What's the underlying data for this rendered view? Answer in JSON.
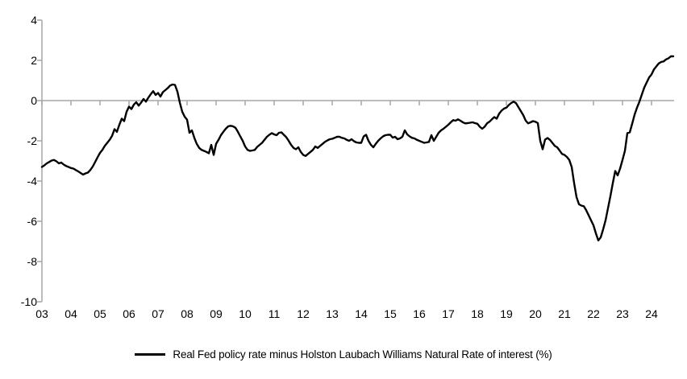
{
  "chart_data": {
    "type": "line",
    "title": "",
    "legend": {
      "label": "Real Fed policy rate minus Holston Laubach Williams Natural Rate of interest (%)",
      "position": "bottom-center",
      "swatch": "solid-black-line"
    },
    "axes": {
      "ylim": [
        -10,
        4
      ],
      "yticks": [
        4,
        2,
        0,
        -2,
        -4,
        -6,
        -8,
        -10
      ],
      "xticks": [
        "03",
        "04",
        "05",
        "06",
        "07",
        "08",
        "09",
        "10",
        "11",
        "12",
        "13",
        "14",
        "15",
        "16",
        "17",
        "18",
        "19",
        "20",
        "21",
        "22",
        "23",
        "24"
      ],
      "x_range_years": [
        2003.0,
        2024.75
      ],
      "grid": false,
      "zero_line": true
    },
    "colors": {
      "series_line": "#000000",
      "axis_line": "#a6a6a6",
      "zero_line": "#a6a6a6",
      "tick": "#a6a6a6",
      "label_text": "#000000"
    },
    "series": [
      {
        "name": "Real Fed policy rate minus Holston Laubach Williams Natural Rate of interest (%)",
        "x_start": "2003-01",
        "x_interval": "monthly",
        "values": [
          -3.3,
          -3.22,
          -3.12,
          -3.05,
          -2.98,
          -2.95,
          -3.02,
          -3.12,
          -3.08,
          -3.18,
          -3.25,
          -3.3,
          -3.35,
          -3.38,
          -3.45,
          -3.52,
          -3.6,
          -3.68,
          -3.62,
          -3.58,
          -3.45,
          -3.28,
          -3.05,
          -2.82,
          -2.6,
          -2.45,
          -2.25,
          -2.1,
          -1.95,
          -1.75,
          -1.42,
          -1.55,
          -1.2,
          -0.9,
          -1.02,
          -0.55,
          -0.3,
          -0.42,
          -0.2,
          -0.08,
          -0.25,
          -0.1,
          0.08,
          -0.05,
          0.15,
          0.32,
          0.47,
          0.28,
          0.38,
          0.2,
          0.42,
          0.52,
          0.62,
          0.75,
          0.8,
          0.78,
          0.45,
          -0.1,
          -0.55,
          -0.8,
          -0.95,
          -1.6,
          -1.48,
          -1.85,
          -2.15,
          -2.35,
          -2.45,
          -2.5,
          -2.55,
          -2.62,
          -2.2,
          -2.7,
          -2.15,
          -1.95,
          -1.72,
          -1.55,
          -1.4,
          -1.28,
          -1.25,
          -1.28,
          -1.35,
          -1.55,
          -1.78,
          -2.0,
          -2.28,
          -2.45,
          -2.5,
          -2.48,
          -2.45,
          -2.3,
          -2.2,
          -2.1,
          -1.95,
          -1.8,
          -1.7,
          -1.62,
          -1.68,
          -1.72,
          -1.6,
          -1.58,
          -1.7,
          -1.82,
          -2.0,
          -2.2,
          -2.35,
          -2.42,
          -2.32,
          -2.55,
          -2.7,
          -2.75,
          -2.65,
          -2.55,
          -2.45,
          -2.28,
          -2.35,
          -2.25,
          -2.15,
          -2.05,
          -1.98,
          -1.92,
          -1.9,
          -1.85,
          -1.8,
          -1.8,
          -1.85,
          -1.88,
          -1.95,
          -2.0,
          -1.92,
          -2.02,
          -2.08,
          -2.1,
          -2.1,
          -1.78,
          -1.7,
          -2.0,
          -2.2,
          -2.32,
          -2.15,
          -2.0,
          -1.88,
          -1.78,
          -1.72,
          -1.7,
          -1.7,
          -1.84,
          -1.8,
          -1.92,
          -1.88,
          -1.8,
          -1.48,
          -1.68,
          -1.78,
          -1.85,
          -1.88,
          -1.95,
          -2.0,
          -2.05,
          -2.1,
          -2.08,
          -2.05,
          -1.72,
          -2.0,
          -1.8,
          -1.6,
          -1.48,
          -1.4,
          -1.3,
          -1.2,
          -1.08,
          -0.97,
          -1.0,
          -0.93,
          -1.0,
          -1.08,
          -1.13,
          -1.12,
          -1.1,
          -1.08,
          -1.12,
          -1.15,
          -1.3,
          -1.4,
          -1.3,
          -1.13,
          -1.05,
          -0.93,
          -0.82,
          -0.9,
          -0.65,
          -0.5,
          -0.4,
          -0.35,
          -0.22,
          -0.12,
          -0.05,
          -0.13,
          -0.33,
          -0.53,
          -0.73,
          -1.0,
          -1.13,
          -1.08,
          -1.02,
          -1.05,
          -1.12,
          -2.0,
          -2.42,
          -1.94,
          -1.86,
          -1.95,
          -2.1,
          -2.25,
          -2.32,
          -2.48,
          -2.65,
          -2.7,
          -2.8,
          -2.95,
          -3.3,
          -4.1,
          -4.8,
          -5.15,
          -5.22,
          -5.25,
          -5.45,
          -5.7,
          -5.95,
          -6.2,
          -6.6,
          -6.95,
          -6.8,
          -6.4,
          -5.95,
          -5.35,
          -4.75,
          -4.1,
          -3.5,
          -3.72,
          -3.38,
          -2.95,
          -2.5,
          -1.62,
          -1.58,
          -1.15,
          -0.7,
          -0.35,
          -0.05,
          0.3,
          0.65,
          0.9,
          1.15,
          1.3,
          1.55,
          1.7,
          1.85,
          1.92,
          1.95,
          2.05,
          2.1,
          2.2,
          2.2
        ]
      }
    ]
  }
}
